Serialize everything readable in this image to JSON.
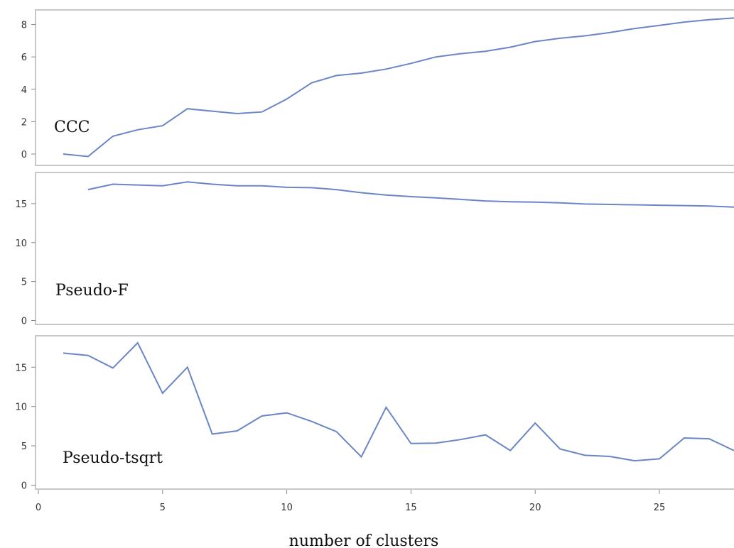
{
  "chart_data": {
    "type": "line",
    "xlabel": "number of clusters",
    "xlim": [
      0,
      28
    ],
    "x_ticks": [
      0,
      5,
      10,
      15,
      20,
      25
    ],
    "line_color": "#6a86c6",
    "frame_color": "#c8c8c8",
    "panels": [
      {
        "label": "CCC",
        "ylim": [
          -0.7,
          8.9
        ],
        "y_ticks": [
          0,
          2,
          4,
          6,
          8
        ],
        "series": [
          {
            "x": [
              1,
              2,
              3,
              4,
              5,
              6,
              7,
              8,
              9,
              10,
              11,
              12,
              13,
              14,
              15,
              16,
              17,
              18,
              19,
              20,
              21,
              22,
              23,
              24,
              25,
              26,
              27,
              28
            ],
            "values": [
              0.0,
              -0.15,
              1.1,
              1.5,
              1.75,
              2.8,
              2.65,
              2.5,
              2.6,
              3.4,
              4.4,
              4.85,
              5.0,
              5.25,
              5.6,
              6.0,
              6.2,
              6.35,
              6.6,
              6.95,
              7.15,
              7.3,
              7.5,
              7.75,
              7.95,
              8.15,
              8.3,
              8.4
            ]
          }
        ]
      },
      {
        "label": "Pseudo-F",
        "ylim": [
          -0.5,
          19.0
        ],
        "y_ticks": [
          0,
          5,
          10,
          15
        ],
        "series": [
          {
            "x": [
              2,
              3,
              4,
              5,
              6,
              7,
              8,
              9,
              10,
              11,
              12,
              13,
              14,
              15,
              16,
              17,
              18,
              19,
              20,
              21,
              22,
              23,
              24,
              25,
              26,
              27,
              28
            ],
            "values": [
              16.8,
              17.5,
              17.4,
              17.3,
              17.8,
              17.5,
              17.3,
              17.3,
              17.1,
              17.05,
              16.8,
              16.4,
              16.1,
              15.9,
              15.75,
              15.55,
              15.35,
              15.25,
              15.2,
              15.1,
              14.95,
              14.9,
              14.85,
              14.8,
              14.75,
              14.7,
              14.55
            ]
          }
        ]
      },
      {
        "label": "Pseudo-tsqrt",
        "ylim": [
          -0.5,
          19.0
        ],
        "y_ticks": [
          0,
          5,
          10,
          15
        ],
        "series": [
          {
            "x": [
              1,
              2,
              3,
              4,
              5,
              6,
              7,
              8,
              9,
              10,
              11,
              12,
              13,
              14,
              15,
              16,
              17,
              18,
              19,
              20,
              21,
              22,
              23,
              24,
              25,
              26,
              27,
              28
            ],
            "values": [
              16.8,
              16.5,
              14.9,
              18.1,
              11.7,
              15.0,
              6.5,
              6.9,
              8.8,
              9.2,
              8.1,
              6.8,
              3.6,
              9.9,
              5.3,
              5.35,
              5.8,
              6.4,
              4.4,
              7.9,
              4.6,
              3.8,
              3.65,
              3.1,
              3.35,
              6.0,
              5.9,
              4.4
            ]
          }
        ]
      }
    ]
  }
}
